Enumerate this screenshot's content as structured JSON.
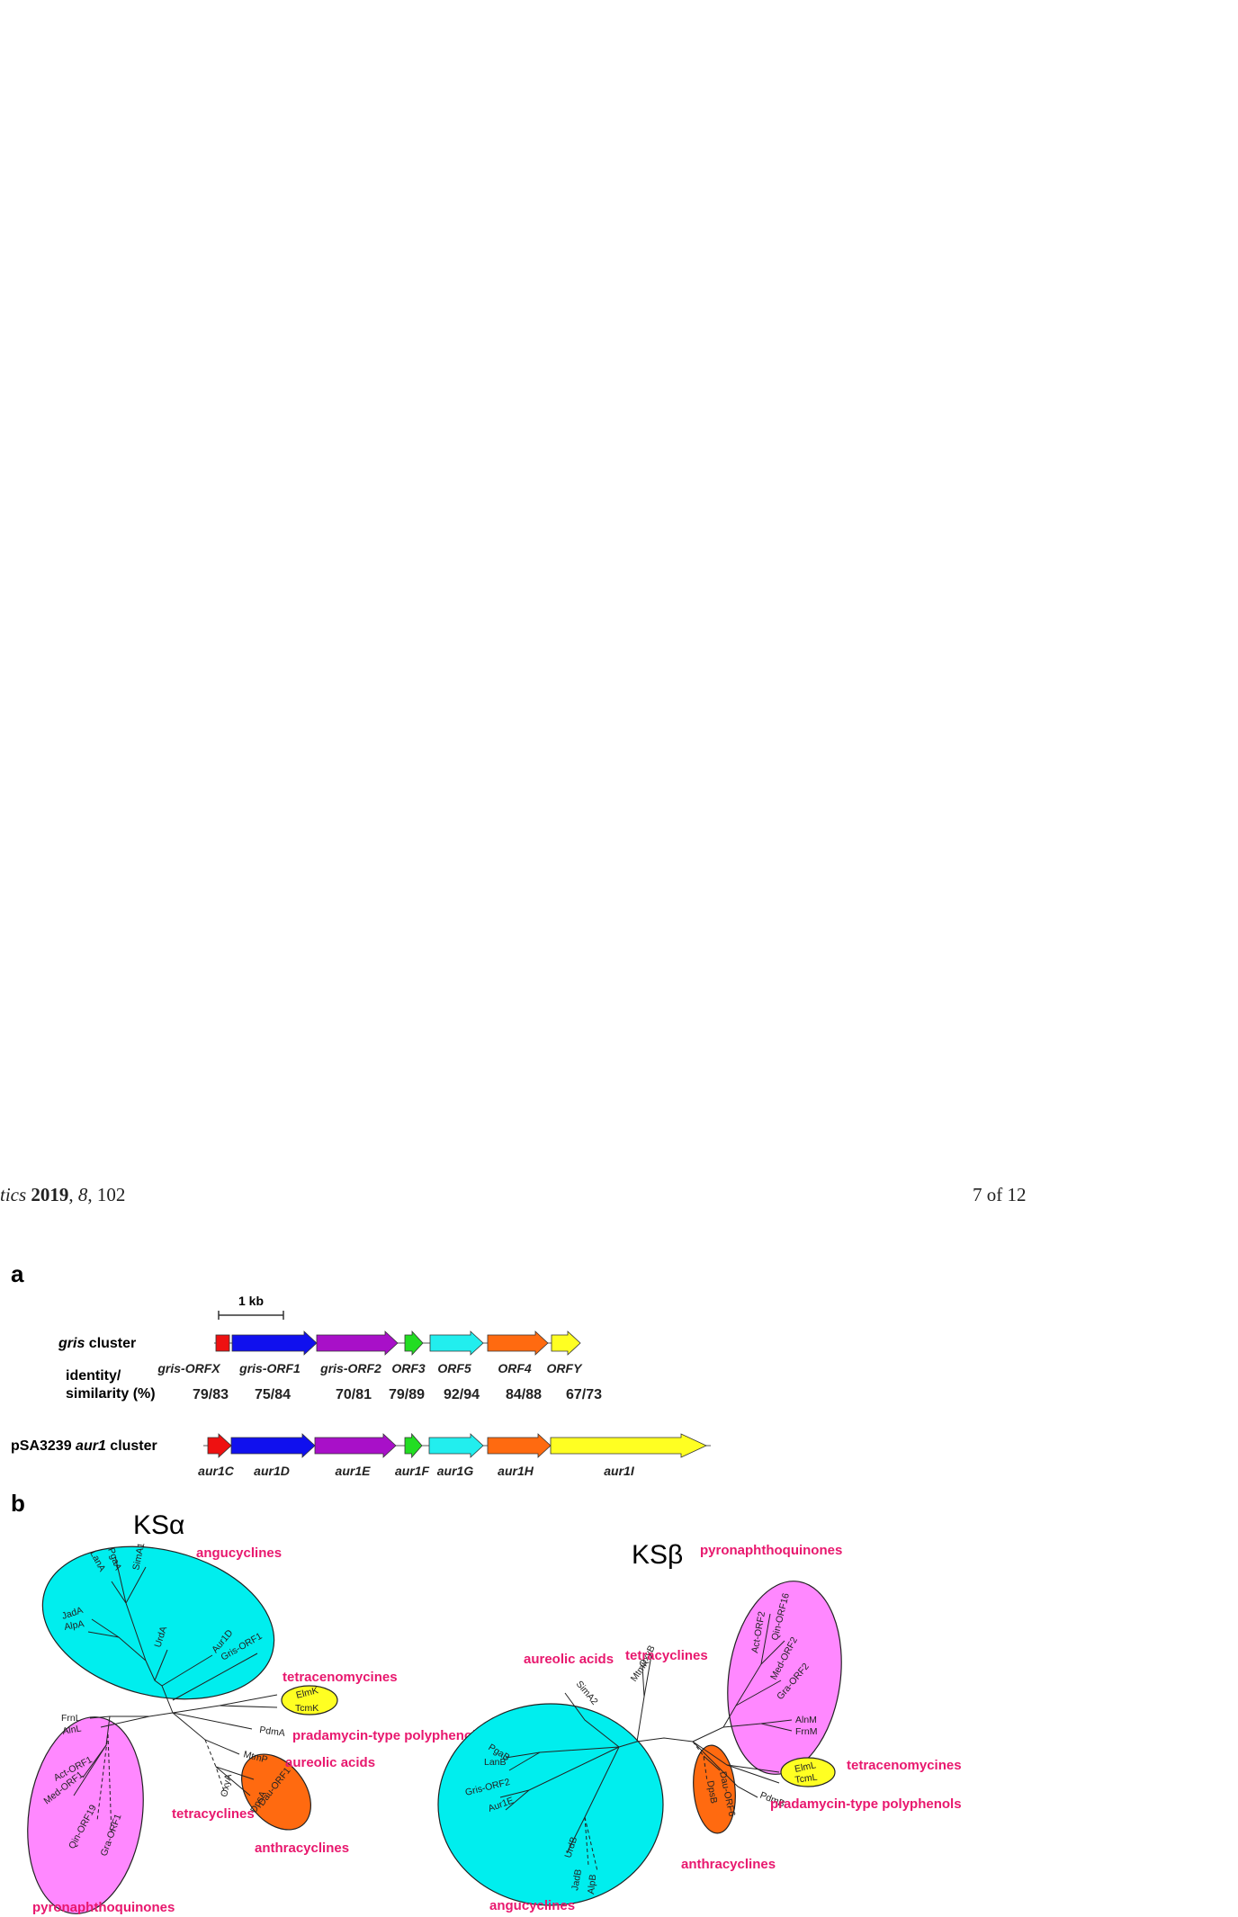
{
  "header": {
    "journal_fragment": "tics",
    "year": "2019",
    "volume": "8",
    "article": "102",
    "page_label": "7 of 12"
  },
  "figure": {
    "panel_a": {
      "label": "a",
      "scale_label": "1 kb",
      "gris_cluster_name": "gris",
      "gris_cluster_suffix": " cluster",
      "identity_label_1": "identity/",
      "identity_label_2": "similarity (%)",
      "aur1_cluster_prefix": "pSA3239 ",
      "aur1_cluster_name": "aur1",
      "aur1_cluster_suffix": " cluster",
      "gris_genes": [
        {
          "label": "gris-ORFX",
          "color": "#ee1111"
        },
        {
          "label": "gris-ORF1",
          "color": "#1010ee"
        },
        {
          "label": "gris-ORF2",
          "color": "#a810c8"
        },
        {
          "label": "ORF3",
          "color": "#22dd22"
        },
        {
          "label": "ORF5",
          "color": "#22eeee"
        },
        {
          "label": "ORF4",
          "color": "#ff6a10"
        },
        {
          "label": "ORFY",
          "color": "#ffff22"
        }
      ],
      "identities": [
        "79/83",
        "75/84",
        "70/81",
        "79/89",
        "92/94",
        "84/88",
        "67/73"
      ],
      "aur1_genes": [
        {
          "label": "aur1C",
          "color": "#ee1111"
        },
        {
          "label": "aur1D",
          "color": "#1010ee"
        },
        {
          "label": "aur1E",
          "color": "#a810c8"
        },
        {
          "label": "aur1F",
          "color": "#22dd22"
        },
        {
          "label": "aur1G",
          "color": "#22eeee"
        },
        {
          "label": "aur1H",
          "color": "#ff6a10"
        },
        {
          "label": "aur1I",
          "color": "#ffff22"
        }
      ]
    },
    "panel_b": {
      "label": "b",
      "ks_alpha": {
        "title": "KSα",
        "groups": {
          "angucyclines": "angucyclines",
          "tetracenomycines": "tetracenomycines",
          "pradamycin": "pradamycin-type polyphenols",
          "aureolic": "aureolic acids",
          "tetracyclines": "tetracyclines",
          "anthracyclines": "anthracyclines",
          "pyronaphthoquinones": "pyronaphthoquinones"
        },
        "leaves": {
          "PgaA": "PgaA",
          "LanA": "LanA",
          "SimA1": "SimA1",
          "JadA": "JadA",
          "AlpA": "AlpA",
          "UrdA": "UrdA",
          "Aur1D": "Aur1D",
          "GrisORF1": "Gris-ORF1",
          "ElmK": "ElmK",
          "TcmK": "TcmK",
          "PdmA": "PdmA",
          "MtmP": "MtmP",
          "OxyA": "OxyA",
          "DauORF1": "Dau-ORF1",
          "DpsA": "DpsA",
          "FrnL": "FrnL",
          "AlnL": "AlnL",
          "ActORF1": "Act-ORF1",
          "MedORF1": "Med-ORF1",
          "QinORF19": "Qin-ORF19",
          "GraORF1": "Gra-ORF1"
        }
      },
      "ks_beta": {
        "title": "KSβ",
        "groups": {
          "pyronaphthoquinones": "pyronaphthoquinones",
          "aureolic": "aureolic acids",
          "tetracyclines": "tetracyclines",
          "tetracenomycines": "tetracenomycines",
          "pradamycin": "pradamycin-type polyphenols",
          "anthracyclines": "anthracyclines",
          "angucyclines": "angucyclines"
        },
        "leaves": {
          "ActORF2": "Act-ORF2",
          "QinORF16": "Qin-ORF16",
          "MedORF2": "Med-ORF2",
          "GraORF2": "Gra-ORF2",
          "AlnM": "AlnM",
          "FrnM": "FrnM",
          "OxyB": "OxyB",
          "MtmK": "MtmK",
          "SimA2": "SimA2",
          "PgaB": "PgaB",
          "LanB": "LanB",
          "GrisORF2": "Gris-ORF2",
          "Aur1E": "Aur1E",
          "UrdB": "UrdB",
          "JadB": "JadB",
          "AlpB": "AlpB",
          "DpsB": "DpsB",
          "DauORF6": "Dau-ORF6",
          "ElmL": "ElmL",
          "TcmL": "TcmL",
          "PdmB": "PdmB"
        }
      }
    }
  }
}
